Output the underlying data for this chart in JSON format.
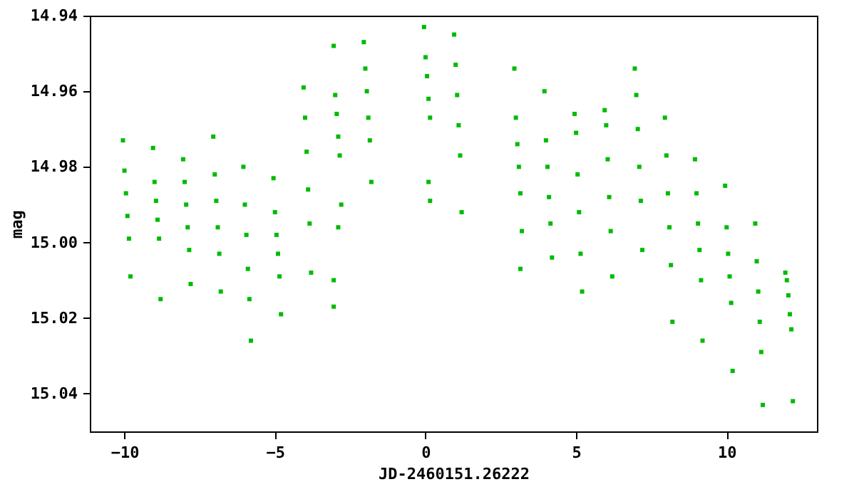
{
  "chart_data": {
    "type": "scatter",
    "xlabel": "JD-2460151.26222",
    "ylabel": "mag",
    "xlim": [
      -11.15,
      13.0
    ],
    "xticks": [
      -10,
      -5,
      0,
      5,
      10
    ],
    "ylim": [
      15.05,
      14.94
    ],
    "yticks": [
      14.94,
      14.96,
      14.98,
      {
        "value": 15,
        "label": "15.00"
      },
      15.02,
      15.04
    ],
    "grid": false,
    "marker": "square",
    "series": [
      {
        "color": "#00bb00",
        "x": [
          -10.05,
          -10,
          -9.95,
          -9.9,
          -9.85,
          -9.8,
          -9.05,
          -9,
          -8.95,
          -8.9,
          -8.85,
          -8.8,
          -8.05,
          -8,
          -7.95,
          -7.9,
          -7.85,
          -7.8,
          -7.05,
          -7,
          -6.95,
          -6.9,
          -6.85,
          -6.8,
          -6.05,
          -6,
          -5.95,
          -5.9,
          -5.85,
          -5.8,
          -5.05,
          -5,
          -4.95,
          -4.9,
          -4.85,
          -4.8,
          -4.05,
          -4,
          -3.95,
          -3.9,
          -3.85,
          -3.8,
          -3.05,
          -3,
          -2.95,
          -2.9,
          -2.85,
          -2.8,
          -2.9,
          -3.05,
          -3.05,
          -2.05,
          -2,
          -1.95,
          -1.9,
          -1.85,
          -1.8,
          -0.05,
          0,
          0.05,
          0.1,
          0.15,
          0.1,
          0.15,
          0.95,
          1,
          1.05,
          1.1,
          1.15,
          1.2,
          2.95,
          3,
          3.05,
          3.1,
          3.15,
          3.2,
          3.15,
          3.95,
          4,
          4.05,
          4.1,
          4.15,
          4.2,
          4.95,
          5,
          5.05,
          5.1,
          5.15,
          5.2,
          5.95,
          6,
          6.05,
          6.1,
          6.15,
          6.2,
          6.95,
          7,
          7.05,
          7.1,
          7.15,
          7.2,
          7.95,
          8,
          8.05,
          8.1,
          8.15,
          8.2,
          8.95,
          9,
          9.05,
          9.1,
          9.15,
          9.2,
          9.95,
          10,
          10.05,
          10.1,
          10.15,
          10.2,
          10.95,
          11,
          11.05,
          11.1,
          11.15,
          11.2,
          11.95,
          12,
          12.05,
          12.1,
          12.15,
          12.2
        ],
        "values": [
          14.973,
          14.981,
          14.987,
          14.993,
          14.999,
          15.009,
          14.975,
          14.984,
          14.989,
          14.994,
          14.999,
          15.015,
          14.978,
          14.984,
          14.99,
          14.996,
          15.002,
          15.011,
          14.972,
          14.982,
          14.989,
          14.996,
          15.003,
          15.013,
          14.98,
          14.99,
          14.998,
          15.007,
          15.015,
          15.026,
          14.983,
          14.992,
          14.998,
          15.003,
          15.009,
          15.019,
          14.959,
          14.967,
          14.976,
          14.986,
          14.995,
          15.008,
          14.948,
          14.961,
          14.966,
          14.972,
          14.977,
          14.99,
          14.996,
          15.01,
          15.017,
          14.947,
          14.954,
          14.96,
          14.967,
          14.973,
          14.984,
          14.943,
          14.951,
          14.956,
          14.962,
          14.967,
          14.984,
          14.989,
          14.945,
          14.953,
          14.961,
          14.969,
          14.977,
          14.992,
          14.954,
          14.967,
          14.974,
          14.98,
          14.987,
          14.997,
          15.007,
          14.96,
          14.973,
          14.98,
          14.988,
          14.995,
          15.004,
          14.966,
          14.971,
          14.982,
          14.992,
          15.003,
          15.013,
          14.965,
          14.969,
          14.978,
          14.988,
          14.997,
          15.009,
          14.954,
          14.961,
          14.97,
          14.98,
          14.989,
          15.002,
          14.967,
          14.977,
          14.987,
          14.996,
          15.006,
          15.021,
          14.978,
          14.987,
          14.995,
          15.002,
          15.01,
          15.026,
          14.985,
          14.996,
          15.003,
          15.009,
          15.016,
          15.034,
          14.995,
          15.005,
          15.013,
          15.021,
          15.029,
          15.043,
          15.008,
          15.01,
          15.014,
          15.019,
          15.023,
          15.042
        ]
      }
    ]
  }
}
